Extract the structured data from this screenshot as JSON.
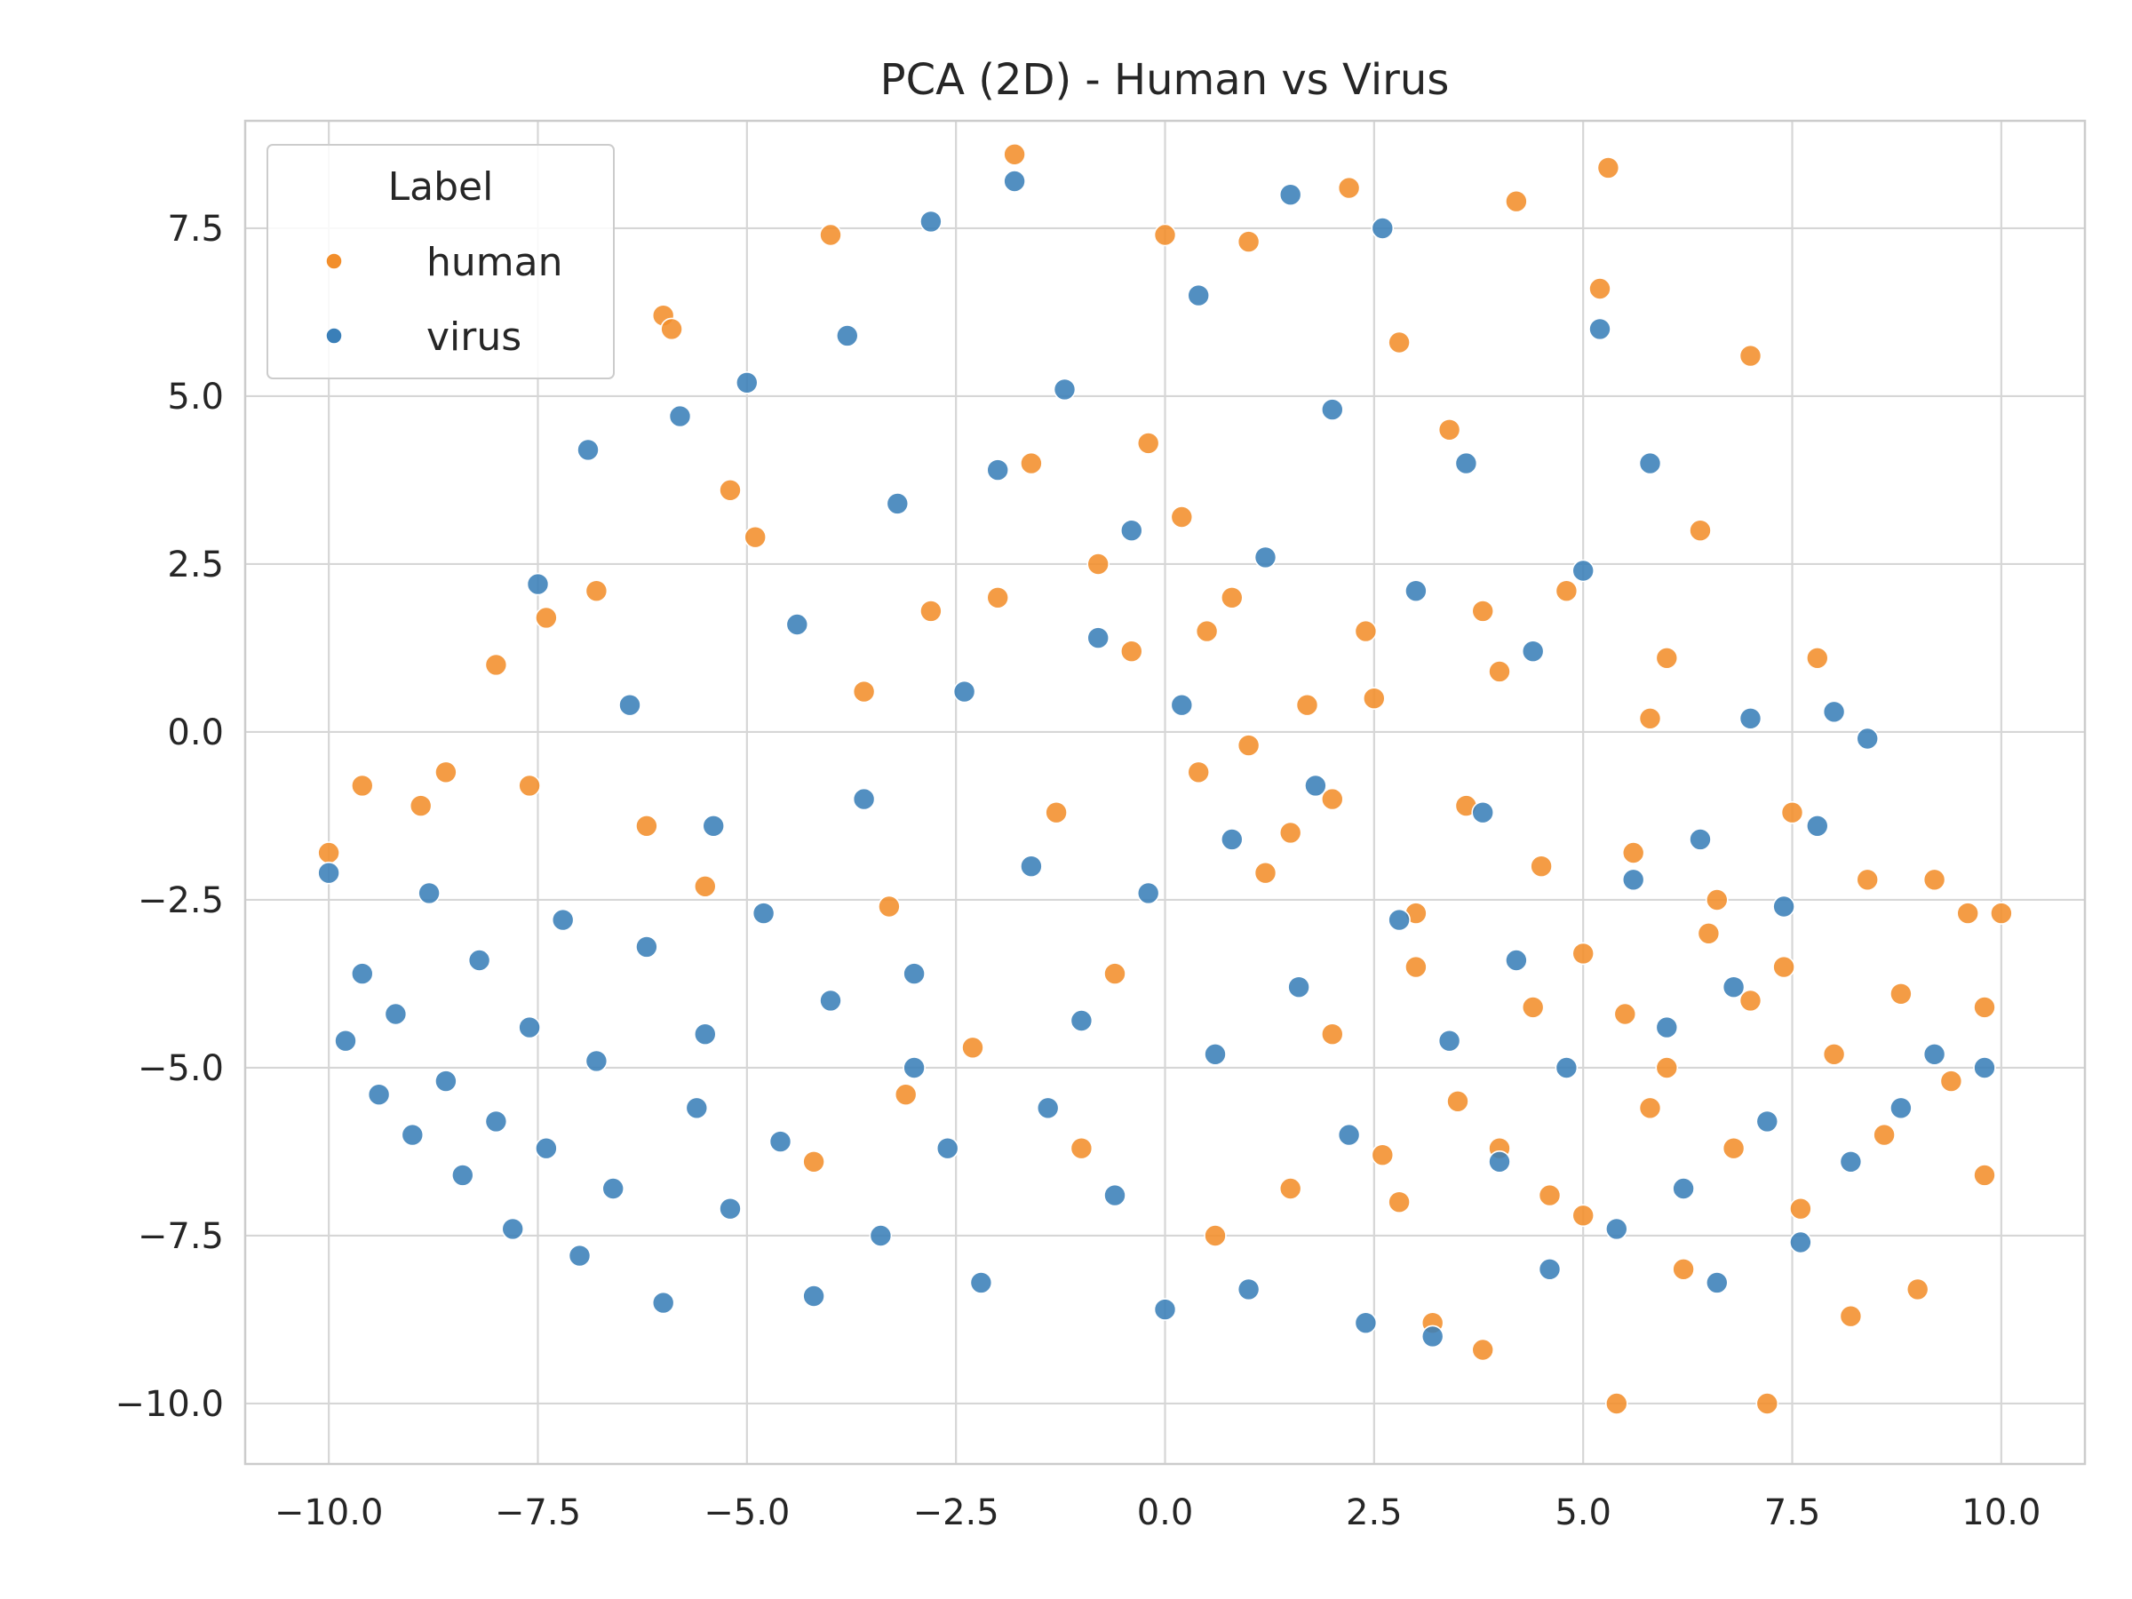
{
  "chart_data": {
    "type": "scatter",
    "title": "PCA (2D) - Human vs Virus",
    "xlabel": "",
    "ylabel": "",
    "xlim": [
      -11.0,
      11.0
    ],
    "ylim": [
      -10.9,
      9.1
    ],
    "xticks": [
      -10.0,
      -7.5,
      -5.0,
      -2.5,
      0.0,
      2.5,
      5.0,
      7.5,
      10.0
    ],
    "xtick_labels": [
      "−10.0",
      "−7.5",
      "−5.0",
      "−2.5",
      "0.0",
      "2.5",
      "5.0",
      "7.5",
      "10.0"
    ],
    "yticks": [
      7.5,
      5.0,
      2.5,
      0.0,
      -2.5,
      -5.0,
      -7.5,
      -10.0
    ],
    "ytick_labels": [
      "7.5",
      "5.0",
      "2.5",
      "0.0",
      "−2.5",
      "−5.0",
      "−7.5",
      "−10.0"
    ],
    "grid": true,
    "legend": {
      "title": "Label",
      "placement": "top-left"
    },
    "series": [
      {
        "name": "human",
        "color": "#f28e2b",
        "points": [
          [
            -10.0,
            -1.8
          ],
          [
            -9.6,
            -0.8
          ],
          [
            -8.9,
            -1.1
          ],
          [
            -8.6,
            -0.6
          ],
          [
            -8.0,
            1.0
          ],
          [
            -7.6,
            -0.8
          ],
          [
            -7.4,
            1.7
          ],
          [
            -6.8,
            2.1
          ],
          [
            -6.2,
            -1.4
          ],
          [
            -6.0,
            6.2
          ],
          [
            -5.9,
            6.0
          ],
          [
            -5.5,
            -2.3
          ],
          [
            -5.2,
            3.6
          ],
          [
            -4.9,
            2.9
          ],
          [
            -4.2,
            -6.4
          ],
          [
            -4.0,
            7.4
          ],
          [
            -3.6,
            0.6
          ],
          [
            -3.3,
            -2.6
          ],
          [
            -3.1,
            -5.4
          ],
          [
            -2.8,
            1.8
          ],
          [
            -2.3,
            -4.7
          ],
          [
            -2.0,
            2.0
          ],
          [
            -1.8,
            8.6
          ],
          [
            -1.6,
            4.0
          ],
          [
            -1.3,
            -1.2
          ],
          [
            -1.0,
            -6.2
          ],
          [
            -0.8,
            2.5
          ],
          [
            -0.6,
            -3.6
          ],
          [
            -0.4,
            1.2
          ],
          [
            -0.2,
            4.3
          ],
          [
            0.0,
            7.4
          ],
          [
            0.2,
            3.2
          ],
          [
            0.4,
            -0.6
          ],
          [
            0.6,
            -7.5
          ],
          [
            0.8,
            2.0
          ],
          [
            1.0,
            7.3
          ],
          [
            1.2,
            -2.1
          ],
          [
            1.5,
            -6.8
          ],
          [
            1.7,
            0.4
          ],
          [
            2.0,
            -4.5
          ],
          [
            2.2,
            8.1
          ],
          [
            2.4,
            1.5
          ],
          [
            2.6,
            -6.3
          ],
          [
            2.8,
            5.8
          ],
          [
            3.0,
            -2.7
          ],
          [
            3.2,
            -8.8
          ],
          [
            3.4,
            4.5
          ],
          [
            3.6,
            -1.1
          ],
          [
            3.8,
            -9.2
          ],
          [
            4.0,
            0.9
          ],
          [
            4.2,
            7.9
          ],
          [
            4.4,
            -4.1
          ],
          [
            4.6,
            -6.9
          ],
          [
            4.8,
            2.1
          ],
          [
            5.0,
            -3.3
          ],
          [
            5.2,
            6.6
          ],
          [
            5.3,
            8.4
          ],
          [
            5.4,
            -10.0
          ],
          [
            5.6,
            -1.8
          ],
          [
            5.8,
            -5.6
          ],
          [
            6.0,
            1.1
          ],
          [
            6.2,
            -8.0
          ],
          [
            6.4,
            3.0
          ],
          [
            6.6,
            -2.5
          ],
          [
            6.8,
            -6.2
          ],
          [
            7.0,
            5.6
          ],
          [
            7.2,
            -10.0
          ],
          [
            7.4,
            -3.5
          ],
          [
            7.6,
            -7.1
          ],
          [
            7.8,
            1.1
          ],
          [
            8.0,
            -4.8
          ],
          [
            8.2,
            -8.7
          ],
          [
            8.4,
            -2.2
          ],
          [
            8.6,
            -6.0
          ],
          [
            8.8,
            -3.9
          ],
          [
            9.0,
            -8.3
          ],
          [
            9.2,
            -2.2
          ],
          [
            9.4,
            -5.2
          ],
          [
            9.6,
            -2.7
          ],
          [
            9.8,
            -4.1
          ],
          [
            10.0,
            -2.7
          ],
          [
            9.8,
            -6.6
          ],
          [
            2.0,
            -1.0
          ],
          [
            3.0,
            -3.5
          ],
          [
            4.5,
            -2.0
          ],
          [
            5.5,
            -4.2
          ],
          [
            6.5,
            -3.0
          ],
          [
            3.5,
            -5.5
          ],
          [
            1.5,
            -1.5
          ],
          [
            2.5,
            0.5
          ],
          [
            4.0,
            -6.2
          ],
          [
            6.0,
            -5.0
          ],
          [
            7.0,
            -4.0
          ],
          [
            5.0,
            -7.2
          ],
          [
            2.8,
            -7.0
          ],
          [
            1.0,
            -0.2
          ],
          [
            0.5,
            1.5
          ],
          [
            3.8,
            1.8
          ],
          [
            5.8,
            0.2
          ],
          [
            7.5,
            -1.2
          ]
        ]
      },
      {
        "name": "virus",
        "color": "#3a7fb8",
        "points": [
          [
            -10.0,
            -2.1
          ],
          [
            -9.8,
            -4.6
          ],
          [
            -9.6,
            -3.6
          ],
          [
            -9.4,
            -5.4
          ],
          [
            -9.2,
            -4.2
          ],
          [
            -9.0,
            -6.0
          ],
          [
            -8.8,
            -2.4
          ],
          [
            -8.6,
            -5.2
          ],
          [
            -8.4,
            -6.6
          ],
          [
            -8.2,
            -3.4
          ],
          [
            -8.0,
            -5.8
          ],
          [
            -7.8,
            -7.4
          ],
          [
            -7.6,
            -4.4
          ],
          [
            -7.5,
            2.2
          ],
          [
            -7.4,
            -6.2
          ],
          [
            -7.2,
            -2.8
          ],
          [
            -7.0,
            -7.8
          ],
          [
            -6.9,
            4.2
          ],
          [
            -6.8,
            -4.9
          ],
          [
            -6.6,
            -6.8
          ],
          [
            -6.4,
            0.4
          ],
          [
            -6.2,
            -3.2
          ],
          [
            -6.0,
            -8.5
          ],
          [
            -5.8,
            4.7
          ],
          [
            -5.6,
            -5.6
          ],
          [
            -5.4,
            -1.4
          ],
          [
            -5.2,
            -7.1
          ],
          [
            -5.0,
            5.2
          ],
          [
            -4.8,
            -2.7
          ],
          [
            -4.6,
            -6.1
          ],
          [
            -4.4,
            1.6
          ],
          [
            -4.2,
            -8.4
          ],
          [
            -4.0,
            -4.0
          ],
          [
            -3.8,
            5.9
          ],
          [
            -3.6,
            -1.0
          ],
          [
            -3.4,
            -7.5
          ],
          [
            -3.2,
            3.4
          ],
          [
            -3.0,
            -3.6
          ],
          [
            -2.8,
            7.6
          ],
          [
            -2.6,
            -6.2
          ],
          [
            -2.4,
            0.6
          ],
          [
            -2.2,
            -8.2
          ],
          [
            -2.0,
            3.9
          ],
          [
            -1.8,
            8.2
          ],
          [
            -1.6,
            -2.0
          ],
          [
            -1.4,
            -5.6
          ],
          [
            -1.2,
            5.1
          ],
          [
            -1.0,
            -4.3
          ],
          [
            -0.8,
            1.4
          ],
          [
            -0.6,
            -6.9
          ],
          [
            -0.4,
            3.0
          ],
          [
            -0.2,
            -2.4
          ],
          [
            0.0,
            -8.6
          ],
          [
            0.2,
            0.4
          ],
          [
            0.4,
            6.5
          ],
          [
            0.6,
            -4.8
          ],
          [
            0.8,
            -1.6
          ],
          [
            1.0,
            -8.3
          ],
          [
            1.2,
            2.6
          ],
          [
            1.5,
            8.0
          ],
          [
            1.6,
            -3.8
          ],
          [
            1.8,
            -0.8
          ],
          [
            2.0,
            4.8
          ],
          [
            2.2,
            -6.0
          ],
          [
            2.4,
            -8.8
          ],
          [
            2.6,
            7.5
          ],
          [
            2.8,
            -2.8
          ],
          [
            3.0,
            2.1
          ],
          [
            3.2,
            -9.0
          ],
          [
            3.4,
            -4.6
          ],
          [
            3.6,
            4.0
          ],
          [
            3.8,
            -1.2
          ],
          [
            4.0,
            -6.4
          ],
          [
            4.2,
            -3.4
          ],
          [
            4.4,
            1.2
          ],
          [
            4.6,
            -8.0
          ],
          [
            4.8,
            -5.0
          ],
          [
            5.0,
            2.4
          ],
          [
            5.2,
            6.0
          ],
          [
            5.4,
            -7.4
          ],
          [
            5.6,
            -2.2
          ],
          [
            5.8,
            4.0
          ],
          [
            6.0,
            -4.4
          ],
          [
            6.2,
            -6.8
          ],
          [
            6.4,
            -1.6
          ],
          [
            6.6,
            -8.2
          ],
          [
            6.8,
            -3.8
          ],
          [
            7.0,
            0.2
          ],
          [
            7.2,
            -5.8
          ],
          [
            7.4,
            -2.6
          ],
          [
            7.6,
            -7.6
          ],
          [
            7.8,
            -1.4
          ],
          [
            8.0,
            0.3
          ],
          [
            8.2,
            -6.4
          ],
          [
            8.4,
            -0.1
          ],
          [
            8.8,
            -5.6
          ],
          [
            9.2,
            -4.8
          ],
          [
            9.8,
            -5.0
          ],
          [
            -5.5,
            -4.5
          ],
          [
            -3.0,
            -5.0
          ]
        ]
      }
    ]
  }
}
